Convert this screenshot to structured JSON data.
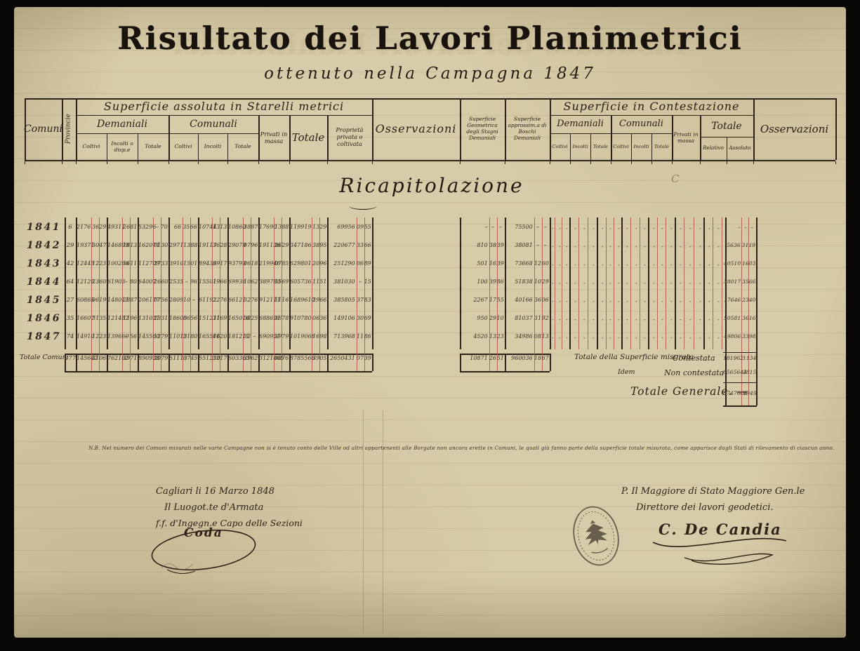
{
  "document": {
    "title": "Risultato dei Lavori Planimetrici",
    "subtitle": "ottenuto nella Campagna 1847",
    "section_heading": "Ricapitolazione"
  },
  "header": {
    "comuni": "Comuni",
    "provincie": "Provincie",
    "abs_title": "Superficie assoluta in Starelli metrici",
    "demaniali": "Demaniali",
    "comunali": "Comunali",
    "coltivi": "Coltivi",
    "incolti_disp": "Incolti o disp.e",
    "incolti": "Incolti",
    "totale": "Totale",
    "privati": "Privati in massa",
    "prop_privata": "Proprietà privata o coltivata",
    "osservazioni": "Osservazioni",
    "stagni": "Superficie Geometrica degli Stagni Demaniali",
    "boschi": "Superficie approssim.a di Boschi Demaniali",
    "cont_title": "Superficie in Contestazione",
    "relativo": "Relativo",
    "assoluto": "Assoluto"
  },
  "rows": [
    {
      "year": "1841",
      "province_count": "6",
      "cols": [
        [
          "2176",
          "36",
          "29"
        ],
        [
          "49311",
          "26",
          "81"
        ],
        [
          "53296",
          "–",
          "70"
        ],
        [
          "66",
          "35",
          "66"
        ],
        [
          "10744",
          "13",
          "13"
        ],
        [
          "10860",
          "38",
          "87"
        ],
        [
          "17690",
          "13",
          "88"
        ],
        [
          "119919",
          "13",
          "29"
        ],
        [
          "69956",
          "09",
          "55"
        ]
      ],
      "stagni": [
        "–",
        "–",
        "–"
      ],
      "boschi": [
        "75500",
        "–",
        "–"
      ],
      "assoluto": [
        "–",
        "–",
        "–"
      ]
    },
    {
      "year": "1842",
      "province_count": "29",
      "cols": [
        [
          "19371",
          "30",
          "47"
        ],
        [
          "146899",
          "18",
          "13"
        ],
        [
          "162071",
          "01",
          "30"
        ],
        [
          "2971",
          "13",
          "88"
        ],
        [
          "19117",
          "36",
          "28"
        ],
        [
          "29079",
          "07",
          "96"
        ],
        [
          "191136",
          "26",
          "29"
        ],
        [
          "347186",
          "38",
          "95"
        ],
        [
          "220677",
          "33",
          "66"
        ]
      ],
      "stagni": [
        "810",
        "38",
        "39"
      ],
      "boschi": [
        "38081",
        "–",
        "–"
      ],
      "assoluto": [
        "5636",
        "31",
        "19"
      ]
    },
    {
      "year": "1843",
      "province_count": "42",
      "cols": [
        [
          "12445",
          "12",
          "23"
        ],
        [
          "100266",
          "16",
          "11"
        ],
        [
          "112709",
          "27",
          "33"
        ],
        [
          "3910",
          "15",
          "01"
        ],
        [
          "89436",
          "39",
          "17"
        ],
        [
          "93793",
          "06",
          "18"
        ],
        [
          "219946",
          "07",
          "85"
        ],
        [
          "629801",
          "20",
          "96"
        ],
        [
          "251290",
          "06",
          "89"
        ]
      ],
      "stagni": [
        "501",
        "16",
        "39"
      ],
      "boschi": [
        "73668",
        "12",
        "60"
      ],
      "assoluto": [
        "40510",
        "16",
        "03"
      ]
    },
    {
      "year": "1844",
      "province_count": "64",
      "cols": [
        [
          "12126",
          "23",
          "60"
        ],
        [
          "61903",
          "–",
          "80"
        ],
        [
          "64007",
          "26",
          "60"
        ],
        [
          "2535",
          "–",
          "96"
        ],
        [
          "15501",
          "19",
          "66"
        ],
        [
          "69936",
          "10",
          "62"
        ],
        [
          "389780",
          "15",
          "69"
        ],
        [
          "605736",
          "11",
          "51"
        ],
        [
          "381030",
          "–",
          "15"
        ]
      ],
      "stagni": [
        "100",
        "39",
        "86"
      ],
      "boschi": [
        "51838",
        "10",
        "29"
      ],
      "assoluto": [
        "38017",
        "35",
        "66"
      ]
    },
    {
      "year": "1845",
      "province_count": "27",
      "cols": [
        [
          "60865",
          "06",
          "19"
        ],
        [
          "148011",
          "28",
          "87"
        ],
        [
          "206177",
          "07",
          "56"
        ],
        [
          "2809",
          "10",
          "–"
        ],
        [
          "61192",
          "22",
          "76"
        ],
        [
          "66121",
          "32",
          "76"
        ],
        [
          "912111",
          "11",
          "16"
        ],
        [
          "1689610",
          "29",
          "66"
        ],
        [
          "385805",
          "37",
          "83"
        ]
      ],
      "stagni": [
        "2267",
        "17",
        "55"
      ],
      "boschi": [
        "40166",
        "36",
        "06"
      ],
      "assoluto": [
        "17646",
        "23",
        "40"
      ]
    },
    {
      "year": "1846",
      "province_count": "35",
      "cols": [
        [
          "16607",
          "31",
          "35"
        ],
        [
          "121482",
          "11",
          "96"
        ],
        [
          "131031",
          "23",
          "31"
        ],
        [
          "18605",
          "06",
          "56"
        ],
        [
          "151211",
          "31",
          "69"
        ],
        [
          "165016",
          "38",
          "25"
        ],
        [
          "688691",
          "36",
          "78"
        ],
        [
          "910780",
          "06",
          "36"
        ],
        [
          "149106",
          "30",
          "69"
        ]
      ],
      "stagni": [
        "950",
        "29",
        "10"
      ],
      "boschi": [
        "81037",
        "31",
        "92"
      ],
      "assoluto": [
        "50581",
        "36",
        "16"
      ]
    },
    {
      "year": "1847",
      "province_count": "74",
      "cols": [
        [
          "14910",
          "12",
          "23"
        ],
        [
          "139660",
          "–",
          "56"
        ],
        [
          "145560",
          "12",
          "79"
        ],
        [
          "11015",
          "21",
          "80"
        ],
        [
          "165506",
          "11",
          "20"
        ],
        [
          "181211",
          "32",
          "–"
        ],
        [
          "690951",
          "39",
          "79"
        ],
        [
          "1019066",
          "16",
          "98"
        ],
        [
          "713968",
          "11",
          "86"
        ]
      ],
      "stagni": [
        "4520",
        "13",
        "23"
      ],
      "boschi": [
        "34986",
        "08",
        "13"
      ],
      "assoluto": [
        "49806",
        "33",
        "98"
      ]
    }
  ],
  "totals": {
    "label": "Totale Comuni",
    "province_count": "277",
    "cols": [
      [
        "145642",
        "31",
        "06"
      ],
      [
        "762162",
        "39",
        "71"
      ],
      [
        "890938",
        "20",
        "79"
      ],
      [
        "51113",
        "07",
        "45"
      ],
      [
        "551250",
        "22",
        "17"
      ],
      [
        "603363",
        "39",
        "62"
      ],
      [
        "3121065",
        "08",
        "76"
      ],
      [
        "8785566",
        "39",
        "05"
      ],
      [
        "2650431",
        "07",
        "39"
      ]
    ],
    "stagni": [
      "10871",
      "26",
      "51"
    ],
    "boschi": [
      "960036",
      "18",
      "67"
    ]
  },
  "summary": {
    "measured_label": "Totale della Superficie misurata",
    "idem_label": "Idem",
    "contestata_label": "Contestata",
    "contestata": [
      "181962",
      "11",
      "34"
    ],
    "non_contestata_label": "Non contestata",
    "non_contestata": [
      "8565644",
      "28",
      "15"
    ],
    "generale_label": "Totale Generale. —",
    "generale": [
      "8747606",
      "39",
      "49"
    ]
  },
  "note": "N.B. Nel numero dei Comuni misurati nelle varie Campagne non si è tenuto conto delle Ville od altri appartenenti alle Borgate non ancora erette in Comuni, le quali già fanno parte della superficie totale misurata, come apparisce dagli Stati di rilevamento di ciascun anno.",
  "signatures": {
    "place_date": "Cagliari li 16 Marzo 1848",
    "left_role1": "Il Luogot.te d'Armata",
    "left_role2": "f.f. d'Ingegn.e Capo delle Sezioni",
    "left_name": "Coda",
    "right_role1": "P. Il Maggiore di Stato Maggiore Gen.le",
    "right_role2": "Direttore dei lavori geodetici.",
    "right_name": "C. De Candia"
  },
  "pencil_mark": "C",
  "colors": {
    "paper": "#d7cca9",
    "ink": "#2c241b",
    "red_rule": "#ad5149"
  }
}
